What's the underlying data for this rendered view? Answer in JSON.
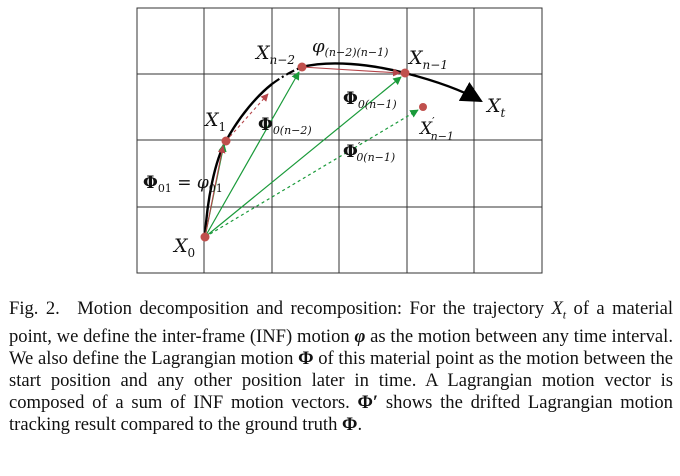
{
  "figure": {
    "points": {
      "x0": "X",
      "x0_sub": "0",
      "x1": "X",
      "x1_sub": "1",
      "xn2": "X",
      "xn2_sub": "n−2",
      "xn1": "X",
      "xn1_sub": "n−1",
      "xt": "X",
      "xt_sub": "t",
      "xn1p": "X",
      "xn1p_sup": "′",
      "xn1p_sub": "n−1"
    },
    "labels": {
      "phi_top": "φ",
      "phi_top_sub": "(n−2)(n−1)",
      "Phi_0n1": "Φ",
      "Phi_0n1_sub": "0(n−1)",
      "Phi_0n2": "Φ",
      "Phi_0n2_sub": "0(n−2)",
      "Phi_prime": "Φ",
      "Phi_prime_sup": "′",
      "Phi_prime_sub": "0(n−1)",
      "Phi_01": "Φ",
      "Phi_01_sub": "01",
      "eq": " = ",
      "phi_01": "φ",
      "phi_01_sub": "01"
    },
    "colors": {
      "grid": "#333333",
      "trajectory": "#000000",
      "green": "#1a9a3a",
      "red_arrow": "#b5454a",
      "point": "#c0504d"
    }
  },
  "caption": {
    "label": "Fig. 2.",
    "t1": "Motion decomposition and recomposition: For the trajectory ",
    "Xt": "X",
    "Xt_sub": "t",
    "t2": " of a material point, we define the inter-frame (INF) motion ",
    "phi": "φ",
    "t3": " as the motion between any time interval. We also define the Lagrangian motion ",
    "Phi": "Φ",
    "t4": " of this material point as the motion between the start position and any other position later in time. A Lagrangian motion vector is composed of a sum of INF motion vectors. ",
    "Phi_prime": "Φ′",
    "t5": " shows the drifted Lagrangian motion tracking result compared to the ground truth ",
    "Phi2": "Φ",
    "t6": "."
  }
}
